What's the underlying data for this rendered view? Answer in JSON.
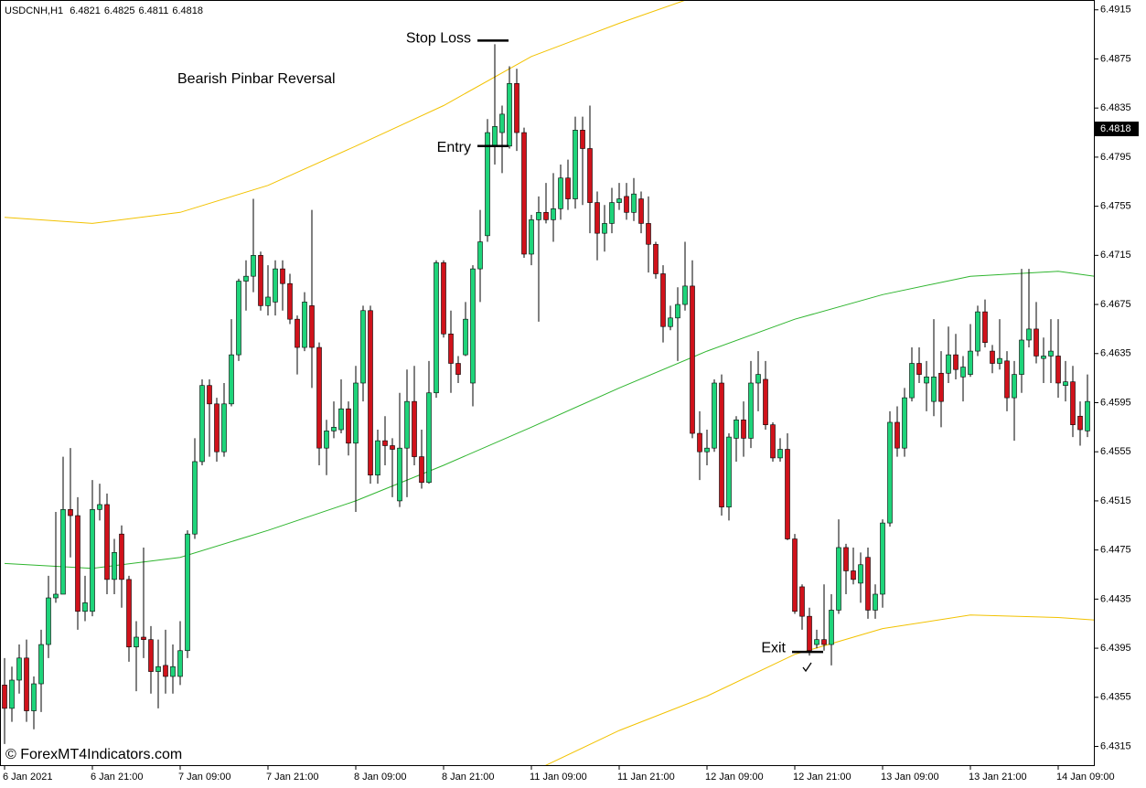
{
  "chart_data": {
    "type": "candlestick",
    "symbol": "USDCNH,H1",
    "ohlc": [
      6.4821,
      6.4825,
      6.4811,
      6.4818
    ],
    "watermark": "© ForexMT4Indicators.com",
    "label_text": "Bearish Pinbar Reversal",
    "annotations": [
      {
        "text": "Stop Loss",
        "value": 6.489
      },
      {
        "text": "Entry",
        "value": 6.4804
      },
      {
        "text": "Exit",
        "value": 6.4392
      }
    ],
    "up_color": "#1ed47a",
    "down_color": "#d0121b",
    "wick_color": "#000000",
    "ylim": [
      6.4299,
      6.4923
    ],
    "yticks": [
      6.4915,
      6.4875,
      6.4835,
      6.4795,
      6.4755,
      6.4715,
      6.4675,
      6.4635,
      6.4595,
      6.4555,
      6.4515,
      6.4475,
      6.4435,
      6.4395,
      6.4355,
      6.4315
    ],
    "categories": [
      "6 Jan 2021",
      null,
      null,
      null,
      null,
      null,
      null,
      null,
      null,
      null,
      null,
      null,
      "6 Jan 21:00",
      null,
      null,
      null,
      null,
      null,
      null,
      null,
      null,
      null,
      null,
      null,
      "7 Jan 09:00",
      null,
      null,
      null,
      null,
      null,
      null,
      null,
      null,
      null,
      null,
      null,
      "7 Jan 21:00",
      null,
      null,
      null,
      null,
      null,
      null,
      null,
      null,
      null,
      null,
      null,
      "8 Jan 09:00",
      null,
      null,
      null,
      null,
      null,
      null,
      null,
      null,
      null,
      null,
      null,
      "8 Jan 21:00",
      null,
      null,
      null,
      null,
      null,
      null,
      null,
      null,
      null,
      null,
      null,
      "11 Jan 09:00",
      null,
      null,
      null,
      null,
      null,
      null,
      null,
      null,
      null,
      null,
      null,
      "11 Jan 21:00",
      null,
      null,
      null,
      null,
      null,
      null,
      null,
      null,
      null,
      null,
      null,
      "12 Jan 09:00",
      null,
      null,
      null,
      null,
      null,
      null,
      null,
      null,
      null,
      null,
      null,
      "12 Jan 21:00",
      null,
      null,
      null,
      null,
      null,
      null,
      null,
      null,
      null,
      null,
      null,
      "13 Jan 09:00",
      null,
      null,
      null,
      null,
      null,
      null,
      null,
      null,
      null,
      null,
      null,
      "13 Jan 21:00",
      null,
      null,
      null,
      null,
      null,
      null,
      null,
      null,
      null,
      null,
      null,
      "14 Jan 09:00",
      null,
      null,
      null,
      null
    ],
    "open": [
      6.4365,
      6.4346,
      6.4369,
      6.4387,
      6.4344,
      6.4366,
      6.4398,
      6.4436,
      6.4439,
      6.4508,
      6.4503,
      6.4425,
      6.4425,
      6.4508,
      6.4512,
      6.4451,
      6.4488,
      6.4451,
      6.4396,
      6.4404,
      6.4402,
      6.4376,
      6.4381,
      6.4372,
      6.4372,
      6.4393,
      6.4488,
      6.4547,
      6.4609,
      6.4594,
      6.4555,
      6.4594,
      6.4634,
      6.4694,
      6.4698,
      6.4715,
      6.4674,
      6.4677,
      6.4704,
      6.4692,
      6.4663,
      6.464,
      6.4674,
      6.464,
      6.4558,
      6.4572,
      6.4573,
      6.459,
      6.4562,
      6.4611,
      6.467,
      6.4536,
      6.4564,
      6.456,
      6.4515,
      6.4558,
      6.4596,
      6.4551,
      6.453,
      6.4603,
      6.4709,
      6.4651,
      6.4627,
      6.4634,
      6.4611,
      6.4704,
      6.4731,
      6.4804,
      6.4815,
      6.4804,
      6.4855,
      6.4815,
      6.4716,
      6.4744,
      6.475,
      6.4744,
      6.4753,
      6.4778,
      6.4761,
      6.4817,
      6.4802,
      6.4758,
      6.4733,
      6.4741,
      6.4758,
      6.4763,
      6.475,
      6.4761,
      6.4741,
      6.4724,
      6.47,
      6.4657,
      6.4664,
      6.4675,
      6.469,
      6.457,
      6.4555,
      6.4558,
      6.4611,
      6.451,
      6.4566,
      6.4581,
      6.4566,
      6.4611,
      6.4614,
      6.4577,
      6.455,
      6.4557,
      6.4484,
      6.4445,
      6.4421,
      6.4398,
      6.4402,
      6.4398,
      6.4426,
      6.4477,
      6.4458,
      6.4448,
      6.4469,
      6.4426,
      6.4439,
      6.4497,
      6.4579,
      6.4558,
      6.4599,
      6.4627,
      6.4611,
      6.4596,
      6.4619,
      6.4619,
      6.4634,
      6.4616,
      6.4618,
      6.4637,
      6.4669,
      6.4637,
      6.4627,
      6.4629,
      6.4599,
      6.4618,
      6.4646,
      6.4655,
      6.4631,
      6.4633,
      6.4633,
      6.4609,
      6.4612,
      6.4584,
      6.4572
    ],
    "high": [
      6.4387,
      6.438,
      6.4398,
      6.4402,
      6.4372,
      6.441,
      6.4454,
      6.4506,
      6.4551,
      6.4558,
      6.4518,
      6.4454,
      6.4532,
      6.4529,
      6.4521,
      6.4484,
      6.4495,
      6.4454,
      6.4417,
      6.4477,
      6.4413,
      6.4402,
      6.441,
      6.4398,
      6.4417,
      6.4491,
      6.4566,
      6.4614,
      6.4614,
      6.4599,
      6.4611,
      6.4663,
      6.4696,
      6.4711,
      6.4761,
      6.4718,
      6.4707,
      6.4711,
      6.4711,
      6.47,
      6.4666,
      6.4685,
      6.4752,
      6.4644,
      6.4581,
      6.4596,
      6.4614,
      6.4596,
      6.4625,
      6.4674,
      6.4674,
      6.4573,
      6.4584,
      6.4566,
      6.4603,
      6.4622,
      6.4625,
      6.4573,
      6.4629,
      6.4711,
      6.4711,
      6.467,
      6.4633,
      6.4677,
      6.4707,
      6.4752,
      6.4826,
      6.4887,
      6.4837,
      6.4869,
      6.4867,
      6.4819,
      6.4748,
      6.4763,
      6.4774,
      6.4782,
      6.4789,
      6.4793,
      6.4828,
      6.4828,
      6.4837,
      6.4767,
      6.4756,
      6.477,
      6.4774,
      6.4774,
      6.4778,
      6.4767,
      6.4763,
      6.4726,
      6.4707,
      6.4674,
      6.4689,
      6.4726,
      6.4711,
      6.4588,
      6.4573,
      6.4614,
      6.4618,
      6.457,
      6.4584,
      6.4596,
      6.4629,
      6.4637,
      6.4629,
      6.4579,
      6.4566,
      6.457,
      6.4488,
      6.4447,
      6.4428,
      6.441,
      6.4447,
      6.4439,
      6.45,
      6.448,
      6.4477,
      6.4473,
      6.4477,
      6.4447,
      6.45,
      6.4588,
      6.4592,
      6.4607,
      6.464,
      6.464,
      6.4629,
      6.4663,
      6.4637,
      6.4657,
      6.4651,
      6.4633,
      6.4659,
      6.4674,
      6.4679,
      6.4642,
      6.4663,
      6.4637,
      6.4629,
      6.4704,
      6.4704,
      6.4677,
      6.4648,
      6.4663,
      6.4663,
      6.4629,
      6.4625,
      6.4596,
      6.4618
    ],
    "low": [
      6.4317,
      6.4335,
      6.4358,
      6.4335,
      6.4329,
      6.4343,
      6.4387,
      6.4432,
      6.4439,
      6.4469,
      6.441,
      6.4417,
      6.4421,
      6.4499,
      6.4439,
      6.4439,
      6.4428,
      6.4384,
      6.436,
      6.4387,
      6.4358,
      6.4346,
      6.4358,
      6.4358,
      6.4365,
      6.4387,
      6.4484,
      6.4544,
      6.4551,
      6.4547,
      6.4551,
      6.4592,
      6.4629,
      6.467,
      6.4685,
      6.467,
      6.4666,
      6.4666,
      6.467,
      6.4659,
      6.4618,
      6.4637,
      6.4607,
      6.4544,
      6.4536,
      6.4566,
      6.457,
      6.4552,
      6.4506,
      6.4596,
      6.4529,
      6.4529,
      6.4544,
      6.4518,
      6.451,
      6.4518,
      6.4544,
      6.4525,
      6.4529,
      6.4599,
      6.4648,
      6.4603,
      6.4611,
      6.4633,
      6.4592,
      6.4677,
      6.4726,
      6.4789,
      6.4782,
      6.4802,
      6.48,
      6.4713,
      6.4707,
      6.4661,
      6.4741,
      6.4726,
      6.4744,
      6.4752,
      6.4753,
      6.4756,
      6.4733,
      6.4711,
      6.4718,
      6.4733,
      6.4752,
      6.4744,
      6.4743,
      6.4733,
      6.4701,
      6.4696,
      6.4644,
      6.4654,
      6.4629,
      6.467,
      6.4566,
      6.4532,
      6.4544,
      6.4555,
      6.4503,
      6.4499,
      6.4547,
      6.4551,
      6.4558,
      6.4588,
      6.4573,
      6.4547,
      6.4547,
      6.4483,
      6.4423,
      6.441,
      6.4389,
      6.4395,
      6.4393,
      6.4381,
      6.4423,
      6.4439,
      6.4447,
      6.4432,
      6.4419,
      6.4419,
      6.4428,
      6.4494,
      6.4551,
      6.4551,
      6.4596,
      6.4611,
      6.4588,
      6.4584,
      6.4575,
      6.4611,
      6.4614,
      6.4596,
      6.4616,
      6.4633,
      6.464,
      6.4619,
      6.4622,
      6.4588,
      6.4564,
      6.4603,
      6.464,
      6.4627,
      6.4611,
      6.4611,
      6.4599,
      6.4596,
      6.4567,
      6.456,
      6.4567
    ],
    "close": [
      6.4346,
      6.4369,
      6.4387,
      6.4344,
      6.4366,
      6.4398,
      6.4436,
      6.4439,
      6.4508,
      6.4503,
      6.4425,
      6.4432,
      6.4508,
      6.4512,
      6.4451,
      6.4473,
      6.4451,
      6.4396,
      6.4404,
      6.4402,
      6.4376,
      6.438,
      6.4372,
      6.438,
      6.4393,
      6.4488,
      6.4547,
      6.4609,
      6.4594,
      6.4555,
      6.4594,
      6.4634,
      6.4694,
      6.4698,
      6.4715,
      6.4674,
      6.4681,
      6.4704,
      6.4692,
      6.4663,
      6.464,
      6.4677,
      6.464,
      6.4558,
      6.4572,
      6.4575,
      6.459,
      6.4562,
      6.4611,
      6.467,
      6.4536,
      6.4564,
      6.456,
      6.4557,
      6.4558,
      6.4596,
      6.4551,
      6.453,
      6.4603,
      6.4709,
      6.4651,
      6.4627,
      6.4618,
      6.4663,
      6.4704,
      6.4726,
      6.4815,
      6.482,
      6.483,
      6.4855,
      6.4815,
      6.4716,
      6.4744,
      6.475,
      6.4744,
      6.4753,
      6.4778,
      6.4761,
      6.4817,
      6.4802,
      6.4758,
      6.4733,
      6.4741,
      6.4758,
      6.4761,
      6.475,
      6.4765,
      6.4741,
      6.4724,
      6.47,
      6.4657,
      6.4664,
      6.4675,
      6.469,
      6.457,
      6.4555,
      6.4558,
      6.4611,
      6.451,
      6.4567,
      6.4581,
      6.4566,
      6.4611,
      6.4618,
      6.4577,
      6.455,
      6.4557,
      6.4484,
      6.4425,
      6.4421,
      6.4393,
      6.4402,
      6.4398,
      6.4426,
      6.4477,
      6.4458,
      6.4451,
      6.4463,
      6.4426,
      6.4439,
      6.4497,
      6.4579,
      6.4558,
      6.4599,
      6.4627,
      6.4618,
      6.4616,
      6.4616,
      6.4596,
      6.4634,
      6.4622,
      6.4624,
      6.4637,
      6.4669,
      6.4644,
      6.4627,
      6.4631,
      6.4599,
      6.4618,
      6.4646,
      6.4655,
      6.4633,
      6.4633,
      6.4637,
      6.4611,
      6.4612,
      6.4577,
      6.4573,
      6.4596
    ],
    "lines": [
      {
        "color": "#f2c200",
        "x": [
          0,
          12,
          24,
          36,
          48,
          60,
          72,
          84,
          96
        ],
        "values": [
          6.4746,
          6.4741,
          6.475,
          6.4772,
          6.4804,
          6.4837,
          6.4877,
          6.4904,
          6.4929
        ]
      },
      {
        "color": "#2fb52f",
        "x": [
          0,
          12,
          24,
          36,
          48,
          60,
          72,
          84,
          96,
          108,
          120,
          132,
          144,
          149
        ],
        "values": [
          6.4464,
          6.446,
          6.4469,
          6.4491,
          6.4515,
          6.4544,
          6.4575,
          6.4607,
          6.4637,
          6.4663,
          6.4683,
          6.4698,
          6.4702,
          6.4698
        ]
      },
      {
        "color": "#f2c200",
        "x": [
          72,
          84,
          96,
          108,
          120,
          132,
          144,
          149
        ],
        "values": [
          6.4294,
          6.4328,
          6.4356,
          6.439,
          6.4411,
          6.4422,
          6.442,
          6.4418
        ]
      }
    ]
  }
}
